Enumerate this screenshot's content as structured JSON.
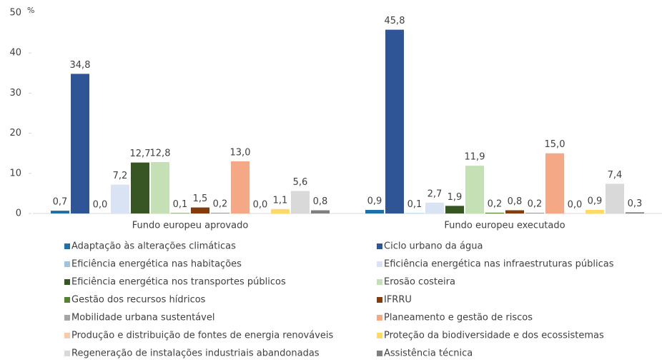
{
  "chart_data": {
    "type": "bar",
    "y_label": "%",
    "categories": [
      "Fundo europeu aprovado",
      "Fundo europeu executado"
    ],
    "ylim": [
      0,
      50
    ],
    "yticks": [
      0,
      10,
      20,
      30,
      40,
      50
    ],
    "series": [
      {
        "name": "Adaptação às alterações climáticas",
        "color": "#1f6fa8",
        "values": [
          0.7,
          0.9
        ],
        "value_labels": [
          "0,7",
          "0,9"
        ]
      },
      {
        "name": "Ciclo urbano da água",
        "color": "#2f5597",
        "values": [
          34.8,
          45.8
        ],
        "value_labels": [
          "34,8",
          "45,8"
        ]
      },
      {
        "name": "Eficiência energética nas habitações",
        "color": "#9dc3e6",
        "values": [
          0.0,
          0.1
        ],
        "value_labels": [
          "0,0",
          "0,1"
        ]
      },
      {
        "name": "Eficiência energética nas infraestruturas públicas",
        "color": "#dae3f3",
        "values": [
          7.2,
          2.7
        ],
        "value_labels": [
          "7,2",
          "2,7"
        ]
      },
      {
        "name": "Eficiência energética nos transportes públicos",
        "color": "#375623",
        "values": [
          12.7,
          1.9
        ],
        "value_labels": [
          "12,7",
          "1,9"
        ]
      },
      {
        "name": "Erosão costeira",
        "color": "#c5e0b4",
        "values": [
          12.8,
          11.9
        ],
        "value_labels": [
          "12,8",
          "11,9"
        ]
      },
      {
        "name": "Gestão dos recursos hídricos",
        "color": "#548235",
        "values": [
          0.1,
          0.2
        ],
        "value_labels": [
          "0,1",
          "0,2"
        ]
      },
      {
        "name": "IFRRU",
        "color": "#843c0c",
        "values": [
          1.5,
          0.8
        ],
        "value_labels": [
          "1,5",
          "0,8"
        ]
      },
      {
        "name": "Mobilidade urbana sustentável",
        "color": "#a5a5a5",
        "values": [
          0.2,
          0.2
        ],
        "value_labels": [
          "0,2",
          "0,2"
        ]
      },
      {
        "name": "Planeamento e gestão de riscos",
        "color": "#f4a886",
        "values": [
          13.0,
          15.0
        ],
        "value_labels": [
          "13,0",
          "15,0"
        ]
      },
      {
        "name": "Produção e distribuição de fontes de energia renováveis",
        "color": "#f8cbad",
        "values": [
          0.0,
          0.0
        ],
        "value_labels": [
          "0,0",
          "0,0"
        ]
      },
      {
        "name": "Proteção da biodiversidade e dos ecossistemas",
        "color": "#ffd966",
        "values": [
          1.1,
          0.9
        ],
        "value_labels": [
          "1,1",
          "0,9"
        ]
      },
      {
        "name": "Regeneração de instalações industriais abandonadas",
        "color": "#d9d9d9",
        "values": [
          5.6,
          7.4
        ],
        "value_labels": [
          "5,6",
          "7,4"
        ]
      },
      {
        "name": "Assistência técnica",
        "color": "#7f7f7f",
        "values": [
          0.8,
          0.3
        ],
        "value_labels": [
          "0,8",
          "0,3"
        ]
      }
    ]
  }
}
